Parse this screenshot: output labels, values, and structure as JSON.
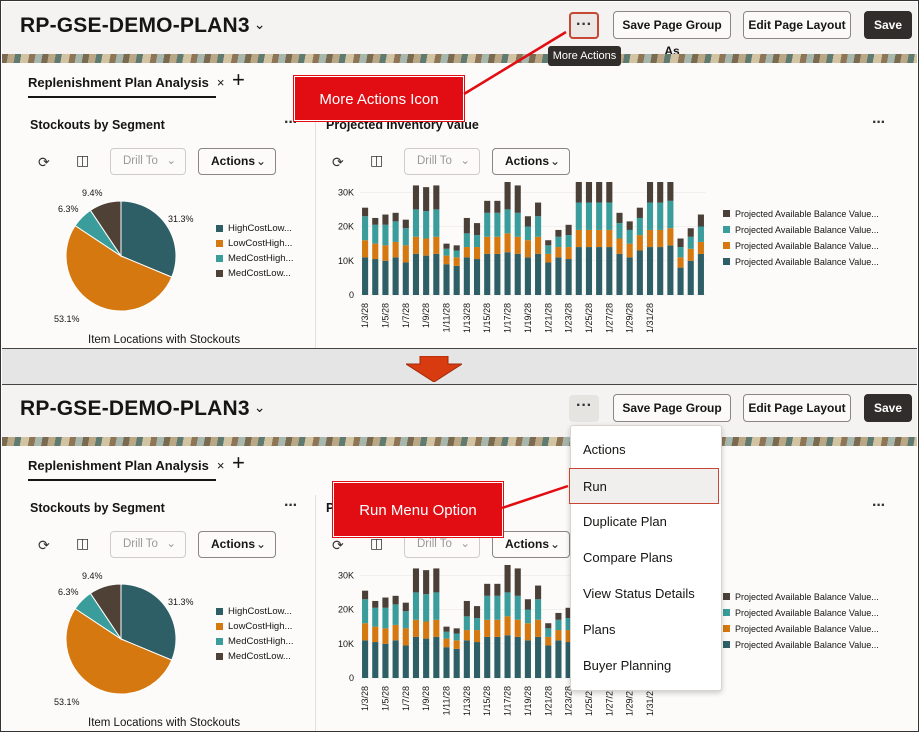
{
  "page": {
    "title": "RP-GSE-DEMO-PLAN3"
  },
  "header": {
    "more_label": "···",
    "save_page_group_label": "Save Page Group As",
    "edit_layout_label": "Edit Page Layout",
    "save_label": "Save"
  },
  "tooltip": "More Actions",
  "tab": {
    "label": "Replenishment Plan Analysis",
    "close": "×",
    "add": "+"
  },
  "card1": {
    "title": "Stockouts by Segment",
    "more": "···",
    "drill_to": "Drill To",
    "actions": "Actions",
    "caption": "Item Locations with Stockouts",
    "slices": [
      {
        "label": "HighCostLow...",
        "value": 31.3,
        "display": "31.3%",
        "color": "#2e5f67"
      },
      {
        "label": "LowCostHigh...",
        "value": 53.1,
        "display": "53.1%",
        "color": "#d4780f"
      },
      {
        "label": "MedCostHigh...",
        "value": 6.3,
        "display": "6.3%",
        "color": "#3a9d9b"
      },
      {
        "label": "MedCostLow...",
        "value": 9.4,
        "display": "9.4%",
        "color": "#4f4136"
      }
    ]
  },
  "card2": {
    "title": "Projected Inventory Value",
    "more": "···",
    "drill_to": "Drill To",
    "actions": "Actions"
  },
  "chart_data": {
    "type": "bar",
    "stacked": true,
    "title": "Projected Inventory Value",
    "ylim": [
      0,
      33000
    ],
    "yticks": [
      "0",
      "10K",
      "20K",
      "30K"
    ],
    "xticks": [
      "1/3/28",
      "1/5/28",
      "1/7/28",
      "1/9/28",
      "1/11/28",
      "1/13/28",
      "1/15/28",
      "1/17/28",
      "1/19/28",
      "1/21/28",
      "1/23/28",
      "1/25/28",
      "1/27/28",
      "1/29/28",
      "1/31/28"
    ],
    "series": [
      {
        "name": "Projected Available Balance Value...",
        "color": "#2e5f67",
        "values": [
          11000,
          10500,
          10000,
          11000,
          9500,
          12000,
          11500,
          12000,
          9000,
          8500,
          11000,
          10500,
          12000,
          12000,
          12500,
          12000,
          11000,
          12000,
          9500,
          11000,
          10500,
          14000,
          14000,
          14000,
          14000,
          12000,
          11000,
          13000,
          14000,
          14000,
          14500,
          8000,
          10000,
          12000
        ]
      },
      {
        "name": "Projected Available Balance Value...",
        "color": "#d4780f",
        "values": [
          5000,
          4500,
          4500,
          4500,
          5000,
          5000,
          5000,
          5000,
          2500,
          2500,
          3000,
          3500,
          5000,
          5000,
          5500,
          5000,
          5000,
          5000,
          2500,
          3000,
          3500,
          5000,
          5000,
          5000,
          5000,
          4500,
          4000,
          4500,
          5000,
          5000,
          5000,
          3000,
          3500,
          3500
        ]
      },
      {
        "name": "Projected Available Balance Value...",
        "color": "#3a9d9b",
        "values": [
          7000,
          5500,
          6000,
          6000,
          5000,
          8000,
          8000,
          8000,
          2000,
          2000,
          4000,
          3500,
          7000,
          7000,
          7000,
          7000,
          4000,
          6000,
          2500,
          3000,
          3500,
          8000,
          8000,
          8000,
          8000,
          4500,
          4000,
          5000,
          8000,
          8000,
          8000,
          3000,
          3500,
          4500
        ]
      },
      {
        "name": "Projected Available Balance Value...",
        "color": "#4a4038",
        "values": [
          2500,
          2000,
          3000,
          2500,
          2500,
          7000,
          7000,
          7000,
          1500,
          1500,
          4500,
          3500,
          3500,
          3500,
          8000,
          8000,
          3000,
          4000,
          1500,
          2000,
          3000,
          8000,
          8000,
          8000,
          8000,
          3000,
          2500,
          3000,
          8000,
          8000,
          7000,
          2500,
          2500,
          3500
        ]
      }
    ]
  },
  "annotations": {
    "more_actions_icon": "More Actions Icon",
    "run_menu_option": "Run Menu Option"
  },
  "menu": {
    "items": [
      "Actions",
      "Run",
      "Duplicate Plan",
      "Compare Plans",
      "View Status Details",
      "Plans",
      "Buyer Planning"
    ]
  }
}
